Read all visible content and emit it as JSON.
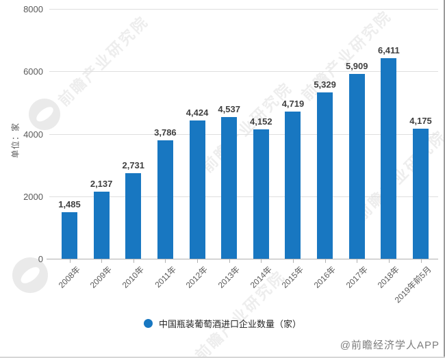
{
  "chart_data": {
    "type": "bar",
    "title": "",
    "ylabel": "单位：家",
    "categories": [
      "2008年",
      "2009年",
      "2010年",
      "2011年",
      "2012年",
      "2013年",
      "2014年",
      "2015年",
      "2016年",
      "2017年",
      "2018年",
      "2019年前5月"
    ],
    "values": [
      1485,
      2137,
      2731,
      3786,
      4424,
      4537,
      4152,
      4719,
      5329,
      5909,
      6411,
      4175
    ],
    "value_labels": [
      "1,485",
      "2,137",
      "2,731",
      "3,786",
      "4,424",
      "4,537",
      "4,152",
      "4,719",
      "5,329",
      "5,909",
      "6,411",
      "4,175"
    ],
    "ylim": [
      0,
      8000
    ],
    "yticks": [
      0,
      2000,
      4000,
      6000,
      8000
    ],
    "grid": true,
    "legend": {
      "label": "中国瓶装葡萄酒进口企业数量（家）",
      "position": "bottom",
      "marker": "circle"
    },
    "bar_color": "#1877c1"
  },
  "watermark": {
    "text": "前瞻产业研究院"
  },
  "footer": {
    "credit": "@前瞻经济学人APP"
  },
  "colors": {
    "bar": "#1877c1",
    "grid": "#dedede",
    "axis": "#b0b0b0",
    "tick_label": "#595959",
    "value_label": "#3f3f3f",
    "legend_text": "#262626",
    "footer_text": "#7d7d7d",
    "watermark": "#8f8f8f"
  }
}
